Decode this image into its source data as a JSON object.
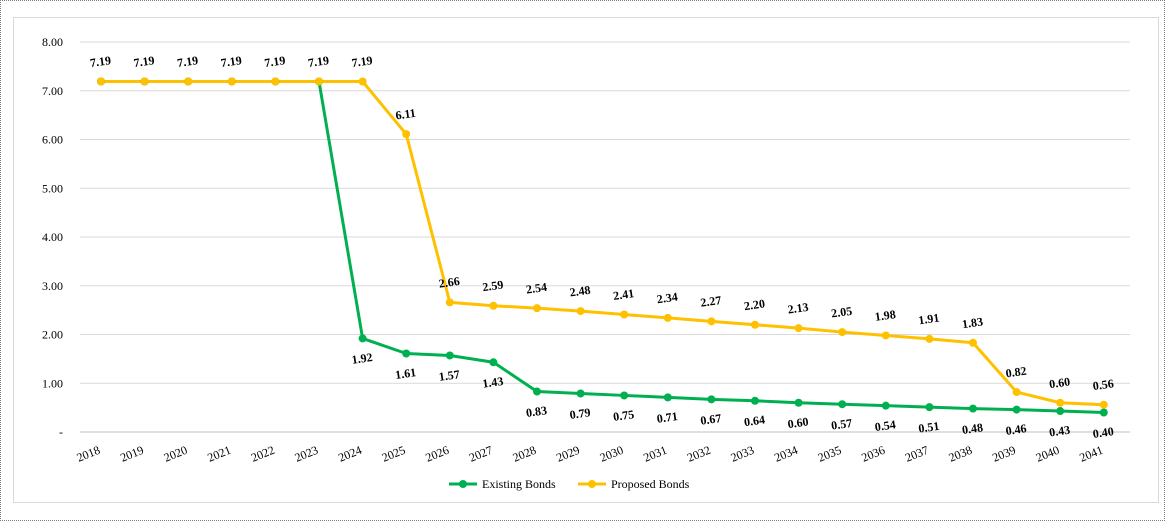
{
  "chart_data": {
    "type": "line",
    "title": "",
    "xlabel": "",
    "ylabel": "",
    "ylim": [
      0,
      8
    ],
    "y_ticks": [
      "-",
      "1.00",
      "2.00",
      "3.00",
      "4.00",
      "5.00",
      "6.00",
      "7.00",
      "8.00"
    ],
    "grid": true,
    "legend_position": "bottom",
    "categories": [
      "2018",
      "2019",
      "2020",
      "2021",
      "2022",
      "2023",
      "2024",
      "2025",
      "2026",
      "2027",
      "2028",
      "2029",
      "2030",
      "2031",
      "2032",
      "2033",
      "2034",
      "2035",
      "2036",
      "2037",
      "2038",
      "2039",
      "2040",
      "2041"
    ],
    "series": [
      {
        "name": "Existing Bonds",
        "color": "#00b050",
        "values": [
          7.19,
          7.19,
          7.19,
          7.19,
          7.19,
          7.19,
          1.92,
          1.61,
          1.57,
          1.43,
          0.83,
          0.79,
          0.75,
          0.71,
          0.67,
          0.64,
          0.6,
          0.57,
          0.54,
          0.51,
          0.48,
          0.46,
          0.43,
          0.4
        ],
        "labels": [
          "",
          "",
          "",
          "",
          "",
          "",
          "1.92",
          "1.61",
          "1.57",
          "1.43",
          "0.83",
          "0.79",
          "0.75",
          "0.71",
          "0.67",
          "0.64",
          "0.60",
          "0.57",
          "0.54",
          "0.51",
          "0.48",
          "0.46",
          "0.43",
          "0.40"
        ]
      },
      {
        "name": "Proposed Bonds",
        "color": "#ffc000",
        "values": [
          7.19,
          7.19,
          7.19,
          7.19,
          7.19,
          7.19,
          7.19,
          6.11,
          2.66,
          2.59,
          2.54,
          2.48,
          2.41,
          2.34,
          2.27,
          2.2,
          2.13,
          2.05,
          1.98,
          1.91,
          1.83,
          0.82,
          0.6,
          0.56
        ],
        "labels": [
          "7.19",
          "7.19",
          "7.19",
          "7.19",
          "7.19",
          "7.19",
          "7.19",
          "6.11",
          "2.66",
          "2.59",
          "2.54",
          "2.48",
          "2.41",
          "2.34",
          "2.27",
          "2.20",
          "2.13",
          "2.05",
          "1.98",
          "1.91",
          "1.83",
          "0.82",
          "0.60",
          "0.56"
        ]
      }
    ]
  }
}
